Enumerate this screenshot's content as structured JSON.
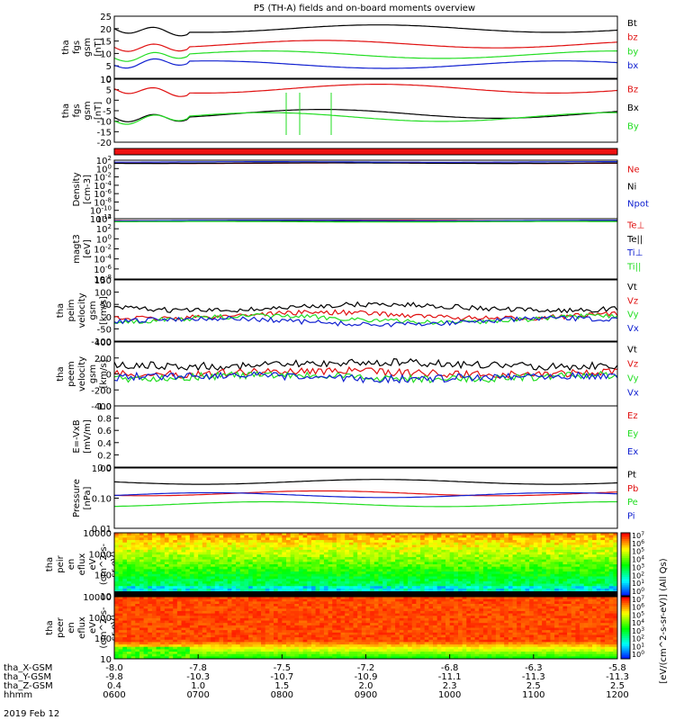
{
  "title": "P5 (TH-A) fields and on-board moments overview",
  "date_label": "2019 Feb 12",
  "colorbar_label": "[eV/(cm^2-s-sr-eV)] (All Qs)",
  "colorbar_ticks": [
    "10^7",
    "10^6",
    "10^5",
    "10^4",
    "10^3",
    "10^2",
    "10^1",
    "10^0"
  ],
  "colors": {
    "black": "#000000",
    "red": "#e01010",
    "green": "#22dd22",
    "blue": "#1020d0"
  },
  "x_axis": {
    "rows": [
      {
        "name": "tha_X-GSM",
        "values": [
          "-8.0",
          "-7.8",
          "-7.5",
          "-7.2",
          "-6.8",
          "-6.3",
          "-5.8"
        ]
      },
      {
        "name": "tha_Y-GSM",
        "values": [
          "-9.8",
          "-10.3",
          "-10.7",
          "-10.9",
          "-11.1",
          "-11.3",
          "-11.3"
        ]
      },
      {
        "name": "tha_Z-GSM",
        "values": [
          "0.4",
          "1.0",
          "1.5",
          "2.0",
          "2.3",
          "2.5",
          "2.5"
        ]
      },
      {
        "name": "hhmm",
        "values": [
          "0600",
          "0700",
          "0800",
          "0900",
          "1000",
          "1100",
          "1200"
        ]
      }
    ]
  },
  "chart_data": [
    {
      "type": "line",
      "ylabel": [
        "tha",
        "fgs",
        "gsm",
        "[nT]"
      ],
      "yticks": [
        "25",
        "20",
        "15",
        "10",
        "5",
        "0"
      ],
      "series": [
        {
          "name": "Bt",
          "color": "black"
        },
        {
          "name": "bz",
          "color": "red"
        },
        {
          "name": "by",
          "color": "green"
        },
        {
          "name": "bx",
          "color": "blue"
        }
      ]
    },
    {
      "type": "line",
      "ylabel": [
        "tha",
        "fgs",
        "gsm",
        "[nT]"
      ],
      "yticks": [
        "10",
        "5",
        "0",
        "-5",
        "-10",
        "-15",
        "-20"
      ],
      "series": [
        {
          "name": "Bz",
          "color": "red"
        },
        {
          "name": "Bx",
          "color": "black"
        },
        {
          "name": "By",
          "color": "green"
        }
      ]
    },
    {
      "type": "line",
      "ylabel": [
        "Density",
        "[cm-3]"
      ],
      "yticks": [
        "10^2",
        "10^0",
        "10^-2",
        "10^-4",
        "10^-6",
        "10^-8",
        "10^-10",
        "10^-12"
      ],
      "series": [
        {
          "name": "Ne",
          "color": "red"
        },
        {
          "name": "Ni",
          "color": "black"
        },
        {
          "name": "Npot",
          "color": "blue"
        }
      ]
    },
    {
      "type": "line",
      "ylabel": [
        "magt3",
        "[eV]"
      ],
      "yticks": [
        "10^4",
        "10^2",
        "10^0",
        "10^-2",
        "10^-4",
        "10^-6",
        "10^-8"
      ],
      "series": [
        {
          "name": "Te⊥",
          "color": "red"
        },
        {
          "name": "Te||",
          "color": "black"
        },
        {
          "name": "Ti⊥",
          "color": "blue"
        },
        {
          "name": "Ti||",
          "color": "green"
        }
      ]
    },
    {
      "type": "line",
      "ylabel": [
        "tha",
        "peim",
        "velocity",
        "gsm",
        "[km/s]"
      ],
      "yticks": [
        "150",
        "100",
        "50",
        "0",
        "-50",
        "-100"
      ],
      "series": [
        {
          "name": "Vt",
          "color": "black"
        },
        {
          "name": "Vz",
          "color": "red"
        },
        {
          "name": "Vy",
          "color": "green"
        },
        {
          "name": "Vx",
          "color": "blue"
        }
      ]
    },
    {
      "type": "line",
      "ylabel": [
        "tha",
        "peem",
        "velocity",
        "gsm",
        "[km/s]"
      ],
      "yticks": [
        "400",
        "200",
        "0",
        "-200",
        "-400"
      ],
      "series": [
        {
          "name": "Vt",
          "color": "black"
        },
        {
          "name": "Vz",
          "color": "red"
        },
        {
          "name": "Vy",
          "color": "green"
        },
        {
          "name": "Vx",
          "color": "blue"
        }
      ]
    },
    {
      "type": "line",
      "ylabel": [
        "E=-VxB",
        "[mV/m]"
      ],
      "yticks": [
        "1.0",
        "0.8",
        "0.6",
        "0.4",
        "0.2",
        "0.0"
      ],
      "series": [
        {
          "name": "Ez",
          "color": "red"
        },
        {
          "name": "Ey",
          "color": "green"
        },
        {
          "name": "Ex",
          "color": "blue"
        }
      ]
    },
    {
      "type": "line",
      "ylabel": [
        "Pressure",
        "[nPa]"
      ],
      "yticks": [
        "1.00",
        "0.10",
        "0.01"
      ],
      "series": [
        {
          "name": "Pt",
          "color": "black"
        },
        {
          "name": "Pb",
          "color": "red"
        },
        {
          "name": "Pe",
          "color": "green"
        },
        {
          "name": "Pi",
          "color": "blue"
        }
      ]
    },
    {
      "type": "heatmap",
      "ylabel": [
        "tha",
        "peir",
        "en",
        "eflux",
        "eV",
        "(cm^2-s-",
        "sr-eV)"
      ],
      "yticks": [
        "10000",
        "1000",
        "100",
        "10"
      ]
    },
    {
      "type": "heatmap",
      "ylabel": [
        "tha",
        "peer",
        "en",
        "eflux",
        "eV",
        "(cm^2-s-",
        "sr-eV)"
      ],
      "yticks": [
        "10000",
        "1000",
        "100",
        "10"
      ]
    }
  ]
}
